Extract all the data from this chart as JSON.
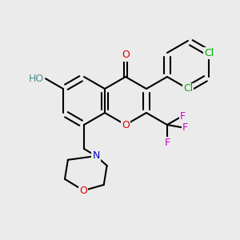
{
  "background_color": "#ebebeb",
  "bond_color": "#000000",
  "lw": 1.5,
  "colors": {
    "O": "#dd0000",
    "N": "#0000cc",
    "Cl": "#00aa00",
    "F": "#cc00cc",
    "HO": "#4a9090",
    "C": "#000000"
  },
  "fontsize": 9
}
